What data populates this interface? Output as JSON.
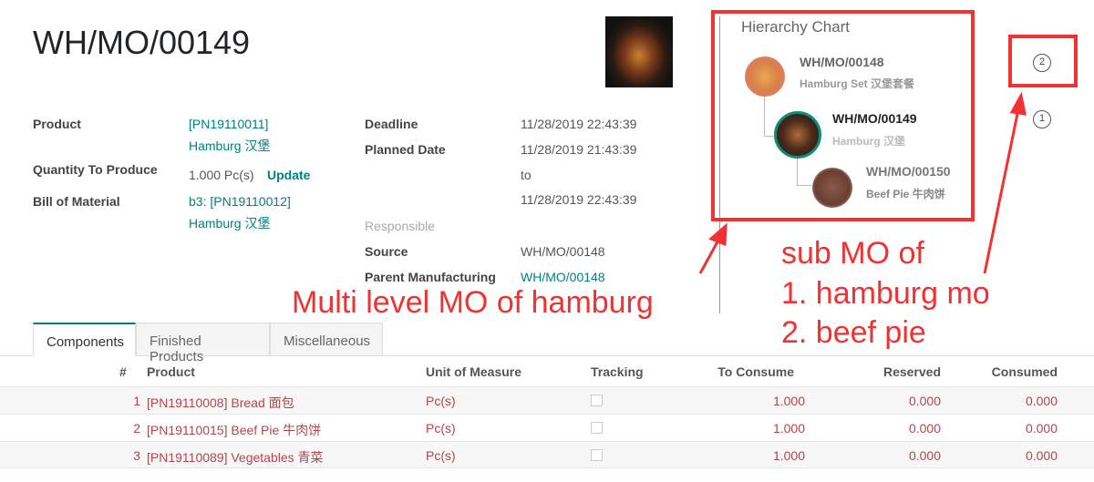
{
  "title": "WH/MO/00149",
  "fields": {
    "product_label": "Product",
    "product_value_1": "[PN19110011]",
    "product_value_2": "Hamburg 汉堡",
    "qty_label": "Quantity To Produce",
    "qty_value": "1.000 Pc(s)",
    "update_label": "Update",
    "bom_label": "Bill of Material",
    "bom_value_1": "b3: [PN19110012]",
    "bom_value_2": "Hamburg 汉堡",
    "deadline_label": "Deadline",
    "deadline_value": "11/28/2019 22:43:39",
    "planned_label": "Planned Date",
    "planned_start": "11/28/2019 21:43:39",
    "planned_to": "to",
    "planned_end": "11/28/2019 22:43:39",
    "responsible_label": "Responsible",
    "source_label": "Source",
    "source_value": "WH/MO/00148",
    "parent_label": "Parent Manufacturing",
    "parent_value": "WH/MO/00148"
  },
  "hierarchy": {
    "title": "Hierarchy Chart",
    "nodes": [
      {
        "ref": "WH/MO/00148",
        "product": "Hamburg Set 汉堡套餐"
      },
      {
        "ref": "WH/MO/00149",
        "product": "Hamburg 汉堡"
      },
      {
        "ref": "WH/MO/00150",
        "product": "Beef Pie 牛肉饼"
      }
    ]
  },
  "badges": [
    "2",
    "1"
  ],
  "annotations": {
    "multi": "Multi level MO of  hamburg",
    "sub_1": "sub MO of",
    "sub_2": "1. hamburg mo",
    "sub_3": "2. beef pie",
    "color": "#f03232"
  },
  "tabs": [
    "Components",
    "Finished Products",
    "Miscellaneous"
  ],
  "table": {
    "headers": [
      "#",
      "Product",
      "Unit of Measure",
      "Tracking",
      "To Consume",
      "Reserved",
      "Consumed"
    ],
    "rows": [
      {
        "n": "1",
        "product": "[PN19110008] Bread 面包",
        "uom": "Pc(s)",
        "to_consume": "1.000",
        "reserved": "0.000",
        "consumed": "0.000"
      },
      {
        "n": "2",
        "product": "[PN19110015] Beef Pie 牛肉饼",
        "uom": "Pc(s)",
        "to_consume": "1.000",
        "reserved": "0.000",
        "consumed": "0.000"
      },
      {
        "n": "3",
        "product": "[PN19110089] Vegetables 青菜",
        "uom": "Pc(s)",
        "to_consume": "1.000",
        "reserved": "0.000",
        "consumed": "0.000"
      }
    ]
  }
}
